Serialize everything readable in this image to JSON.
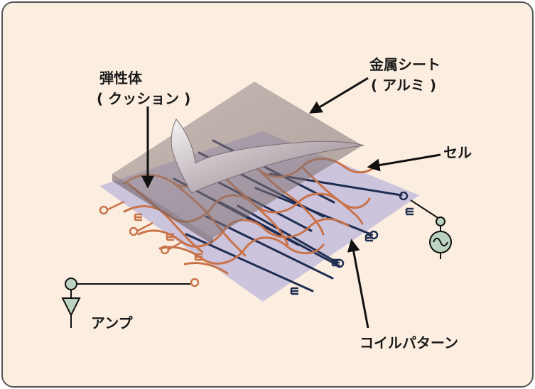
{
  "labels": {
    "elastic_line1": "弾性体",
    "elastic_line2": "( クッション )",
    "metal_line1": "金属シート",
    "metal_line2": "( アルミ )",
    "cell": "セル",
    "amp": "アンプ",
    "coil_pattern": "コイルパターン"
  },
  "colors": {
    "background": "#fbeee0",
    "border": "#555555",
    "coil_orange": "#c8734a",
    "coil_navy": "#1f2e52",
    "base_sheet": "#c7bfdb",
    "metal_sheet": "#8a7c7c",
    "component_fill": "#bcd4bf"
  },
  "icons": [
    "amplifier-icon",
    "ac-source-icon"
  ]
}
